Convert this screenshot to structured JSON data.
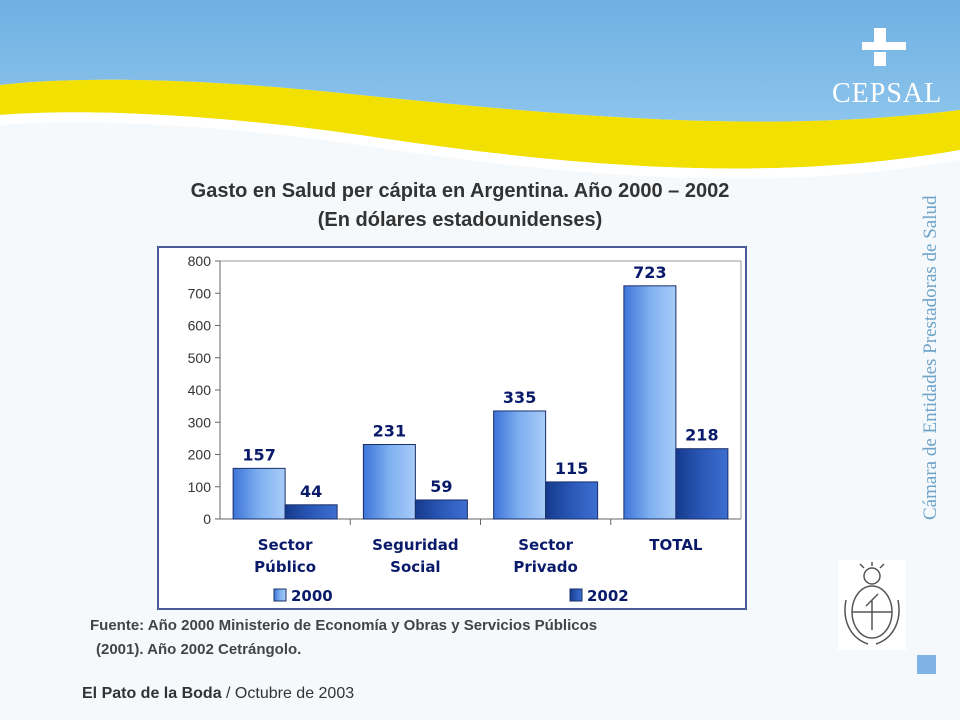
{
  "header": {
    "logo_text": "CEPSAL",
    "vertical_text": "Cámara de Entidades Prestadoras de Salud"
  },
  "title": {
    "line1": "Gasto en Salud per cápita en Argentina. Año 2000 – 2002",
    "line2": "(En dólares estadounidenses)"
  },
  "chart_data": {
    "type": "bar",
    "categories": [
      [
        "Sector",
        "Público"
      ],
      [
        "Seguridad",
        "Social"
      ],
      [
        "Sector",
        "Privado"
      ],
      [
        "TOTAL"
      ]
    ],
    "series": [
      {
        "name": "2000",
        "values": [
          157,
          231,
          335,
          723
        ],
        "color": "#7fb0f0"
      },
      {
        "name": "2002",
        "values": [
          44,
          59,
          115,
          218
        ],
        "color": "#2a58b8"
      }
    ],
    "ylim": [
      0,
      800
    ],
    "yticks": [
      0,
      100,
      200,
      300,
      400,
      500,
      600,
      700,
      800
    ],
    "legend_position": "bottom"
  },
  "source": {
    "line1": "Fuente: Año 2000 Ministerio de Economía y Obras y Servicios Públicos",
    "line2": "(2001). Año 2002 Cetrángolo."
  },
  "footer": {
    "bold": "El Pato de la Boda",
    "rest": " / Octubre de 2003"
  },
  "colors": {
    "header_blue": "#7fb7e4",
    "band_yellow": "#f2e100",
    "accent_blue": "#6fa3c8"
  }
}
